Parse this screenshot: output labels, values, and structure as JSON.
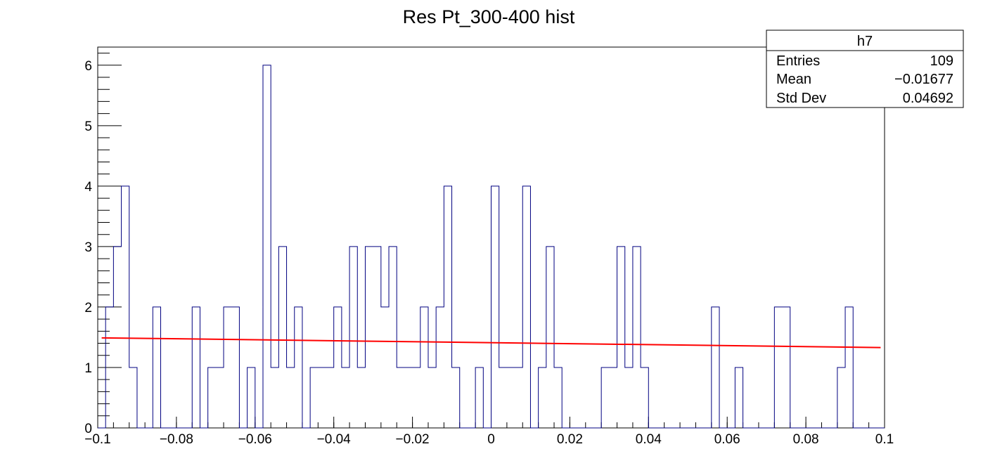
{
  "chart_data": {
    "type": "bar",
    "title": "Res Pt_300-400 hist",
    "xlabel": "",
    "ylabel": "",
    "xlim": [
      -0.1,
      0.1
    ],
    "ylim": [
      0,
      6.3
    ],
    "bin_width": 0.002,
    "x_tick_labels": [
      "−0.1",
      "−0.08",
      "−0.06",
      "−0.04",
      "−0.02",
      "0",
      "0.02",
      "0.04",
      "0.06",
      "0.08",
      "0.1"
    ],
    "x_tick_values": [
      -0.1,
      -0.08,
      -0.06,
      -0.04,
      -0.02,
      0,
      0.02,
      0.04,
      0.06,
      0.08,
      0.1
    ],
    "y_tick_labels": [
      "0",
      "1",
      "2",
      "3",
      "4",
      "5",
      "6"
    ],
    "y_tick_values": [
      0,
      1,
      2,
      3,
      4,
      5,
      6
    ],
    "series": [
      {
        "color": "#000080",
        "bin_edges_start": -0.1,
        "counts": [
          0,
          2,
          3,
          4,
          1,
          0,
          0,
          2,
          0,
          0,
          0,
          0,
          2,
          0,
          1,
          1,
          2,
          2,
          0,
          1,
          0,
          6,
          1,
          3,
          1,
          2,
          0,
          1,
          1,
          1,
          2,
          1,
          3,
          1,
          3,
          3,
          2,
          3,
          1,
          1,
          1,
          2,
          1,
          2,
          4,
          1,
          0,
          0,
          1,
          0,
          4,
          1,
          1,
          1,
          4,
          0,
          1,
          3,
          1,
          0,
          0,
          0,
          0,
          0,
          1,
          1,
          3,
          1,
          3,
          1,
          0,
          0,
          0,
          0,
          0,
          0,
          0,
          0,
          2,
          0,
          0,
          1,
          0,
          0,
          0,
          0,
          2,
          2,
          0,
          0,
          0,
          0,
          0,
          0,
          1,
          2,
          0,
          0,
          0,
          0
        ]
      },
      {
        "color": "#ff0000",
        "type": "line",
        "x": [
          -0.099,
          0.099
        ],
        "y": [
          1.49,
          1.33
        ]
      }
    ],
    "stats_box": {
      "title": "h7",
      "rows": [
        {
          "label": "Entries",
          "value": "109"
        },
        {
          "label": "Mean",
          "value": "−0.01677"
        },
        {
          "label": "Std Dev",
          "value": "0.04692"
        }
      ]
    }
  }
}
